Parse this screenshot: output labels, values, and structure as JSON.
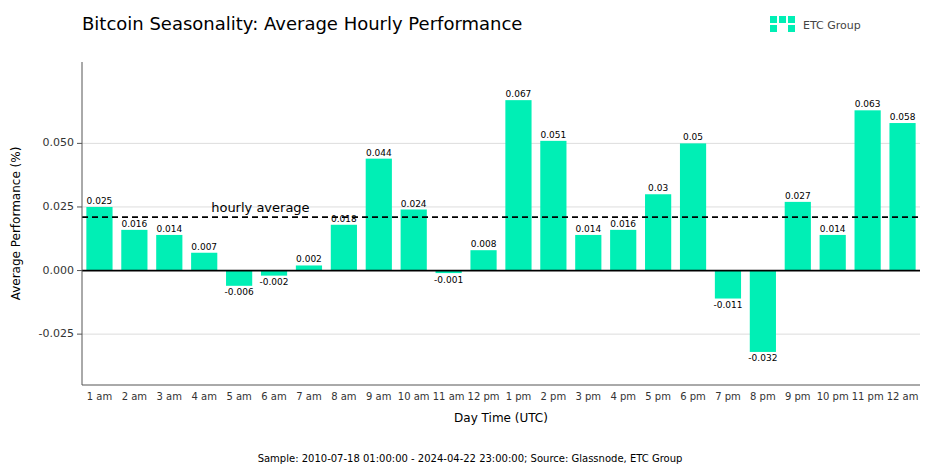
{
  "chart_data": {
    "type": "bar",
    "title": "Bitcoin Seasonality: Average Hourly Performance",
    "x_label": "Day Time (UTC)",
    "y_label": "Average Performance (%)",
    "caption": "Sample: 2010-07-18 01:00:00 - 2024-04-22 23:00:00; Source: Glassnode, ETC Group",
    "logo": "ETC Group",
    "annotations": [
      {
        "text": "hourly average",
        "value": 0.021
      }
    ],
    "categories": [
      "1 am",
      "2 am",
      "3 am",
      "4 am",
      "5 am",
      "6 am",
      "7 am",
      "8 am",
      "9 am",
      "10 am",
      "11 am",
      "12 pm",
      "1 pm",
      "2 pm",
      "3 pm",
      "4 pm",
      "5 pm",
      "6 pm",
      "7 pm",
      "8 pm",
      "9 pm",
      "10 pm",
      "11 pm",
      "12 am"
    ],
    "values": [
      0.025,
      0.016,
      0.014,
      0.007,
      -0.006,
      -0.002,
      0.002,
      0.018,
      0.044,
      0.024,
      -0.001,
      0.008,
      0.067,
      0.051,
      0.014,
      0.016,
      0.03,
      0.05,
      -0.011,
      -0.032,
      0.027,
      0.014,
      0.063,
      0.058
    ],
    "color": "#00EFB5",
    "ylim": [
      -0.045,
      0.082
    ],
    "yticks": [
      -0.025,
      {
        "value": 0,
        "label": "0.000"
      },
      0.025,
      {
        "value": 0.05,
        "label": "0.050"
      }
    ],
    "grid": true,
    "data_labels": true
  }
}
